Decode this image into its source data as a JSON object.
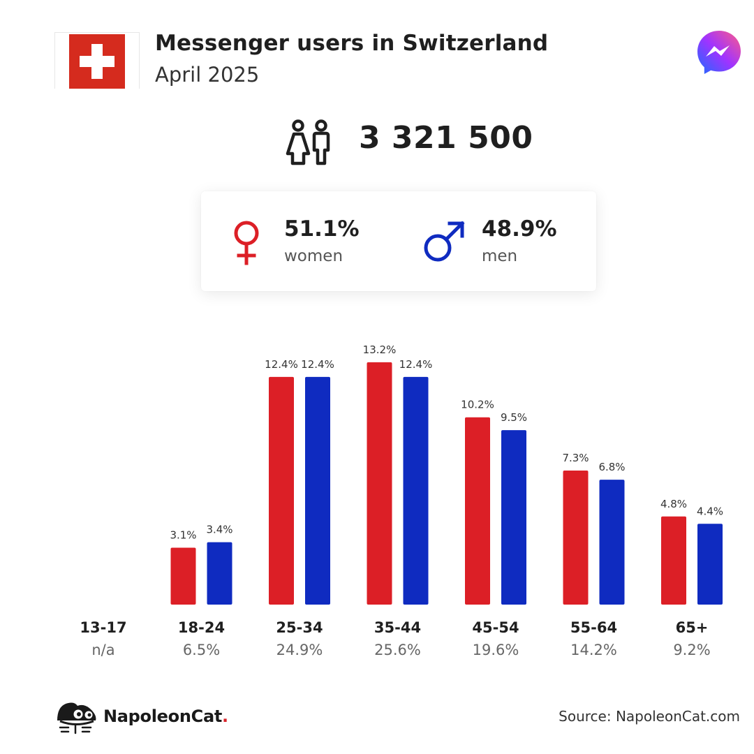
{
  "header": {
    "title": "Messenger users in Switzerland",
    "subtitle": "April 2025"
  },
  "summary": {
    "total_users": "3 321 500"
  },
  "gender": {
    "women_pct": "51.1%",
    "women_label": "women",
    "men_pct": "48.9%",
    "men_label": "men"
  },
  "colors": {
    "women": "#dc1f26",
    "men": "#0f2bc0",
    "flag_red": "#d52b1e"
  },
  "icons": {
    "flag": "swiss-flag-icon",
    "app": "messenger-icon",
    "users": "people-icon",
    "women": "female-symbol-icon",
    "men": "male-symbol-icon",
    "brand": "napoleoncat-logo-icon"
  },
  "chart_data": {
    "type": "bar",
    "categories": [
      "13-17",
      "18-24",
      "25-34",
      "35-44",
      "45-54",
      "55-64",
      "65+"
    ],
    "category_shares": [
      "n/a",
      "6.5%",
      "24.9%",
      "25.6%",
      "19.6%",
      "14.2%",
      "9.2%"
    ],
    "series": [
      {
        "key": "women",
        "values": [
          null,
          3.1,
          12.4,
          13.2,
          10.2,
          7.3,
          4.8
        ],
        "labels": [
          "",
          "3.1%",
          "12.4%",
          "13.2%",
          "10.2%",
          "7.3%",
          "4.8%"
        ]
      },
      {
        "key": "men",
        "values": [
          null,
          3.4,
          12.4,
          12.4,
          9.5,
          6.8,
          4.4
        ],
        "labels": [
          "",
          "3.4%",
          "12.4%",
          "12.4%",
          "9.5%",
          "6.8%",
          "4.4%"
        ]
      }
    ],
    "ylim": [
      0,
      13.2
    ],
    "grid": false,
    "legend": "none"
  },
  "footer": {
    "brand": "NapoleonCat",
    "brand_dot": ".",
    "source": "Source: NapoleonCat.com"
  }
}
